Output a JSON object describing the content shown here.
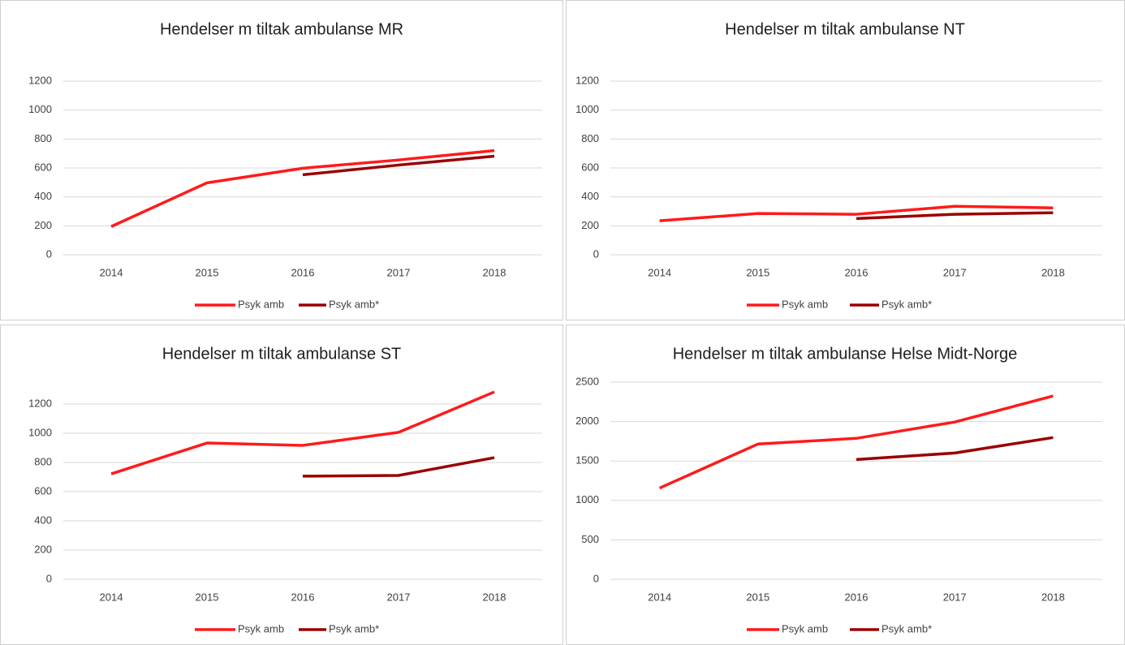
{
  "chart_data": [
    {
      "type": "line",
      "title": "Hendelser m tiltak ambulanse MR",
      "x": [
        "2014",
        "2015",
        "2016",
        "2017",
        "2018"
      ],
      "series": [
        {
          "name": "Psyk amb",
          "color": "#ff1a1a",
          "values": [
            195,
            497,
            598,
            655,
            720
          ]
        },
        {
          "name": "Psyk amb*",
          "color": "#990000",
          "values": [
            null,
            null,
            553,
            620,
            681
          ]
        }
      ],
      "ylim": [
        0,
        1200
      ],
      "yticks": [
        0,
        200,
        400,
        600,
        800,
        1000,
        1200
      ],
      "grid": true,
      "legend": "bottom"
    },
    {
      "type": "line",
      "title": "Hendelser m tiltak ambulanse NT",
      "x": [
        "2014",
        "2015",
        "2016",
        "2017",
        "2018"
      ],
      "series": [
        {
          "name": "Psyk amb",
          "color": "#ff1a1a",
          "values": [
            235,
            285,
            280,
            335,
            324
          ]
        },
        {
          "name": "Psyk amb*",
          "color": "#990000",
          "values": [
            null,
            null,
            250,
            280,
            290
          ]
        }
      ],
      "ylim": [
        0,
        1200
      ],
      "yticks": [
        0,
        200,
        400,
        600,
        800,
        1000,
        1200
      ],
      "grid": true,
      "legend": "bottom"
    },
    {
      "type": "line",
      "title": "Hendelser m tiltak ambulanse ST",
      "x": [
        "2014",
        "2015",
        "2016",
        "2017",
        "2018"
      ],
      "series": [
        {
          "name": "Psyk amb",
          "color": "#ff1a1a",
          "values": [
            722,
            933,
            917,
            1006,
            1283
          ]
        },
        {
          "name": "Psyk amb*",
          "color": "#990000",
          "values": [
            null,
            null,
            706,
            711,
            833
          ]
        }
      ],
      "ylim": [
        0,
        1300
      ],
      "yticks": [
        0,
        200,
        400,
        600,
        800,
        1000,
        1200
      ],
      "grid": true,
      "legend": "bottom"
    },
    {
      "type": "line",
      "title": "Hendelser m tiltak ambulanse Helse Midt-Norge",
      "x": [
        "2014",
        "2015",
        "2016",
        "2017",
        "2018"
      ],
      "series": [
        {
          "name": "Psyk amb",
          "color": "#ff1a1a",
          "values": [
            1157,
            1715,
            1787,
            1994,
            2324
          ]
        },
        {
          "name": "Psyk amb*",
          "color": "#990000",
          "values": [
            null,
            null,
            1519,
            1601,
            1797
          ]
        }
      ],
      "ylim": [
        0,
        2500
      ],
      "yticks": [
        0,
        500,
        1000,
        1500,
        2000,
        2500
      ],
      "grid": true,
      "legend": "bottom"
    }
  ]
}
